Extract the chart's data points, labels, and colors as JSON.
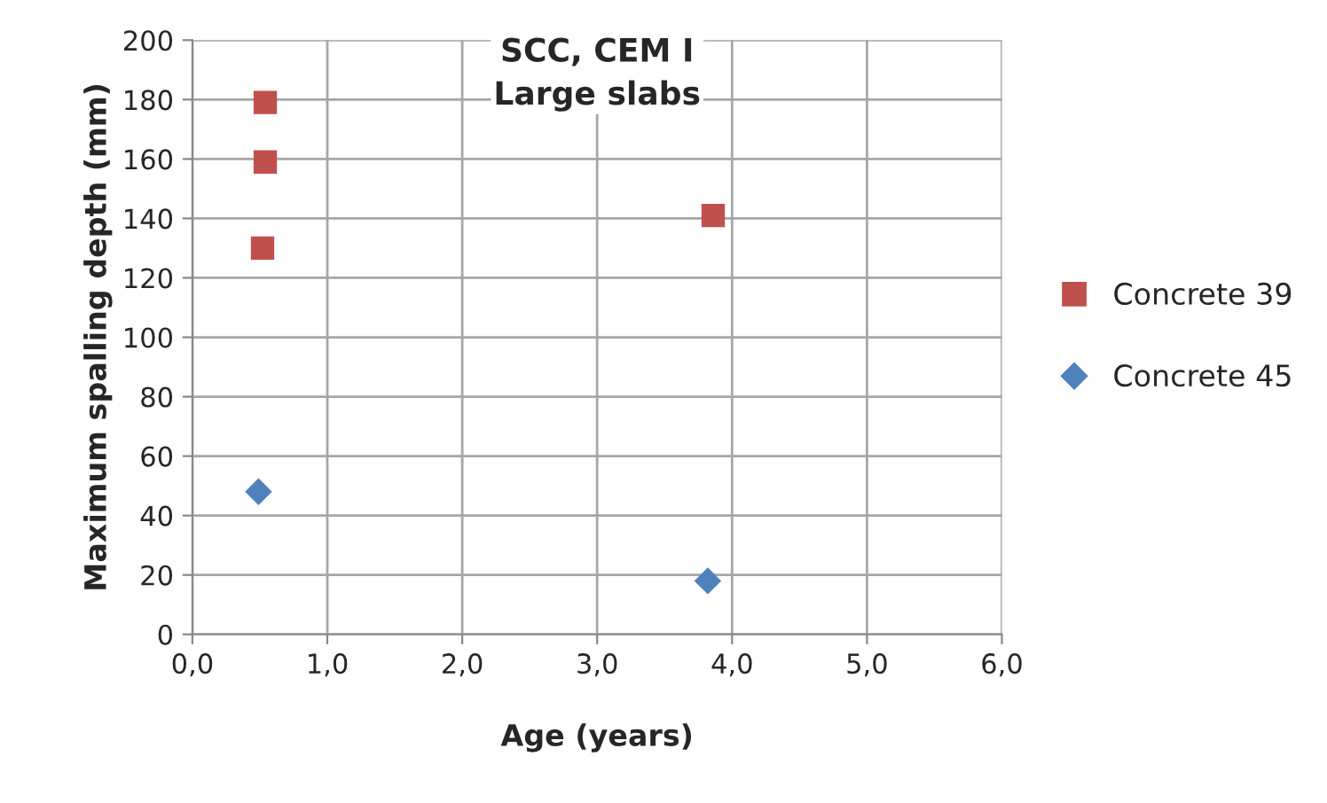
{
  "chart_data": {
    "type": "scatter",
    "title": "SCC, CEM I\nLarge slabs",
    "xlabel": "Age (years)",
    "ylabel": "Maximum spalling depth (mm)",
    "series": [
      {
        "name": "Concrete 39",
        "color": "#c0504d",
        "marker": "square",
        "x": [
          0.54,
          0.54,
          0.52,
          3.86
        ],
        "values": [
          179,
          159,
          130,
          141
        ]
      },
      {
        "name": "Concrete 45",
        "color": "#4f81bd",
        "marker": "diamond",
        "x": [
          0.49,
          3.82
        ],
        "values": [
          48,
          18
        ]
      }
    ],
    "xlim": [
      0,
      6
    ],
    "xticks": [
      {
        "value": 0,
        "label": "0,0"
      },
      {
        "value": 1,
        "label": "1,0"
      },
      {
        "value": 2,
        "label": "2,0"
      },
      {
        "value": 3,
        "label": "3,0"
      },
      {
        "value": 4,
        "label": "4,0"
      },
      {
        "value": 5,
        "label": "5,0"
      },
      {
        "value": 6,
        "label": "6,0"
      }
    ],
    "ylim": [
      0,
      200
    ],
    "yticks": [
      0,
      20,
      40,
      60,
      80,
      100,
      120,
      140,
      160,
      180,
      200
    ],
    "grid": true,
    "legend": "right"
  }
}
